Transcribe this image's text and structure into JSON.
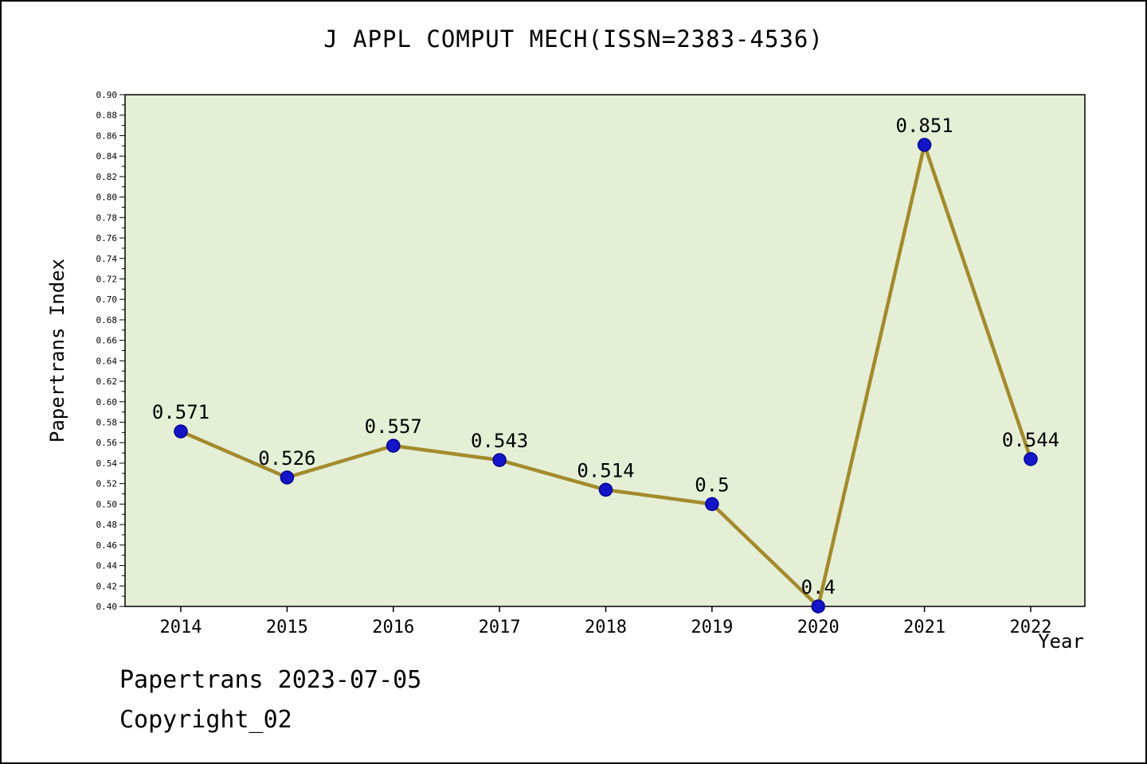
{
  "footer": {
    "line1": "Papertrans 2023-07-05",
    "line2": "Copyright_02"
  },
  "chart_data": {
    "type": "line",
    "title": "J APPL COMPUT MECH(ISSN=2383-4536)",
    "xlabel": "Year",
    "ylabel": "Papertrans Index",
    "x": [
      2014,
      2015,
      2016,
      2017,
      2018,
      2019,
      2020,
      2021,
      2022
    ],
    "series": [
      {
        "name": "Papertrans Index",
        "values": [
          0.571,
          0.526,
          0.557,
          0.543,
          0.514,
          0.5,
          0.4,
          0.851,
          0.544
        ]
      }
    ],
    "point_labels": [
      "0.571",
      "0.526",
      "0.557",
      "0.543",
      "0.514",
      "0.5",
      "0.4",
      "0.851",
      "0.544"
    ],
    "ylim": [
      0.4,
      0.9
    ],
    "ytick_major_step": 0.02,
    "ytick_minor_step": 0.01,
    "grid": false,
    "legend": "none",
    "colors": {
      "plot_bg": "#e4efd6",
      "line": "#a38a2c",
      "marker_fill": "#1414c8",
      "marker_edge": "#000090",
      "text": "#000000",
      "page_bg": "#ffffff",
      "border": "#000000"
    }
  }
}
